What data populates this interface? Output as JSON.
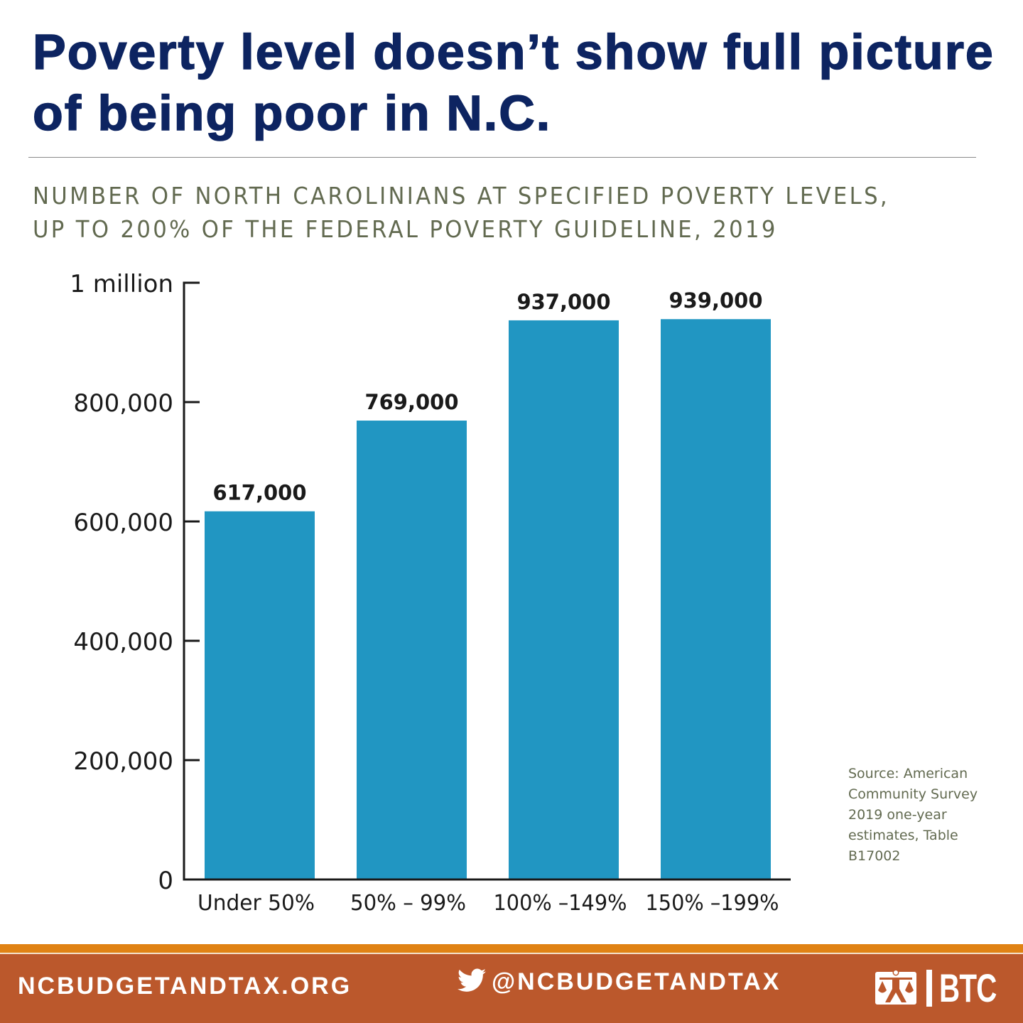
{
  "header": {
    "title": "Poverty level doesn’t show full picture of being poor in N.C.",
    "subtitle_line1": "NUMBER OF NORTH CAROLINIANS AT SPECIFIED POVERTY LEVELS,",
    "subtitle_line2": "UP TO 200% OF THE FEDERAL POVERTY GUIDELINE, 2019"
  },
  "chart_data": {
    "type": "bar",
    "title": "Number of North Carolinians at specified poverty levels, up to 200% of the federal poverty guideline, 2019",
    "categories": [
      "Under 50%",
      "50% – 99%",
      "100% –149%",
      "150% –199%"
    ],
    "values": [
      617000,
      769000,
      937000,
      939000
    ],
    "data_labels": [
      "617,000",
      "769,000",
      "937,000",
      "939,000"
    ],
    "xlabel": "",
    "ylabel": "",
    "ylim": [
      0,
      1000000
    ],
    "yticks": [
      0,
      200000,
      400000,
      600000,
      800000,
      1000000
    ],
    "ytick_labels": [
      "0",
      "200,000",
      "400,000",
      "600,000",
      "800,000",
      "1 million"
    ],
    "grid": false,
    "legend": "none",
    "bar_color": "#2196c2"
  },
  "source": {
    "text": "Source: American Community Survey 2019 one-year estimates, Table B17002"
  },
  "footer": {
    "website": "NCBUDGETANDTAX.ORG",
    "twitter_handle": "@NCBUDGETANDTAX",
    "logo_text": "BTC",
    "colors": {
      "stripe": "#e08214",
      "band": "#bb582c"
    }
  }
}
